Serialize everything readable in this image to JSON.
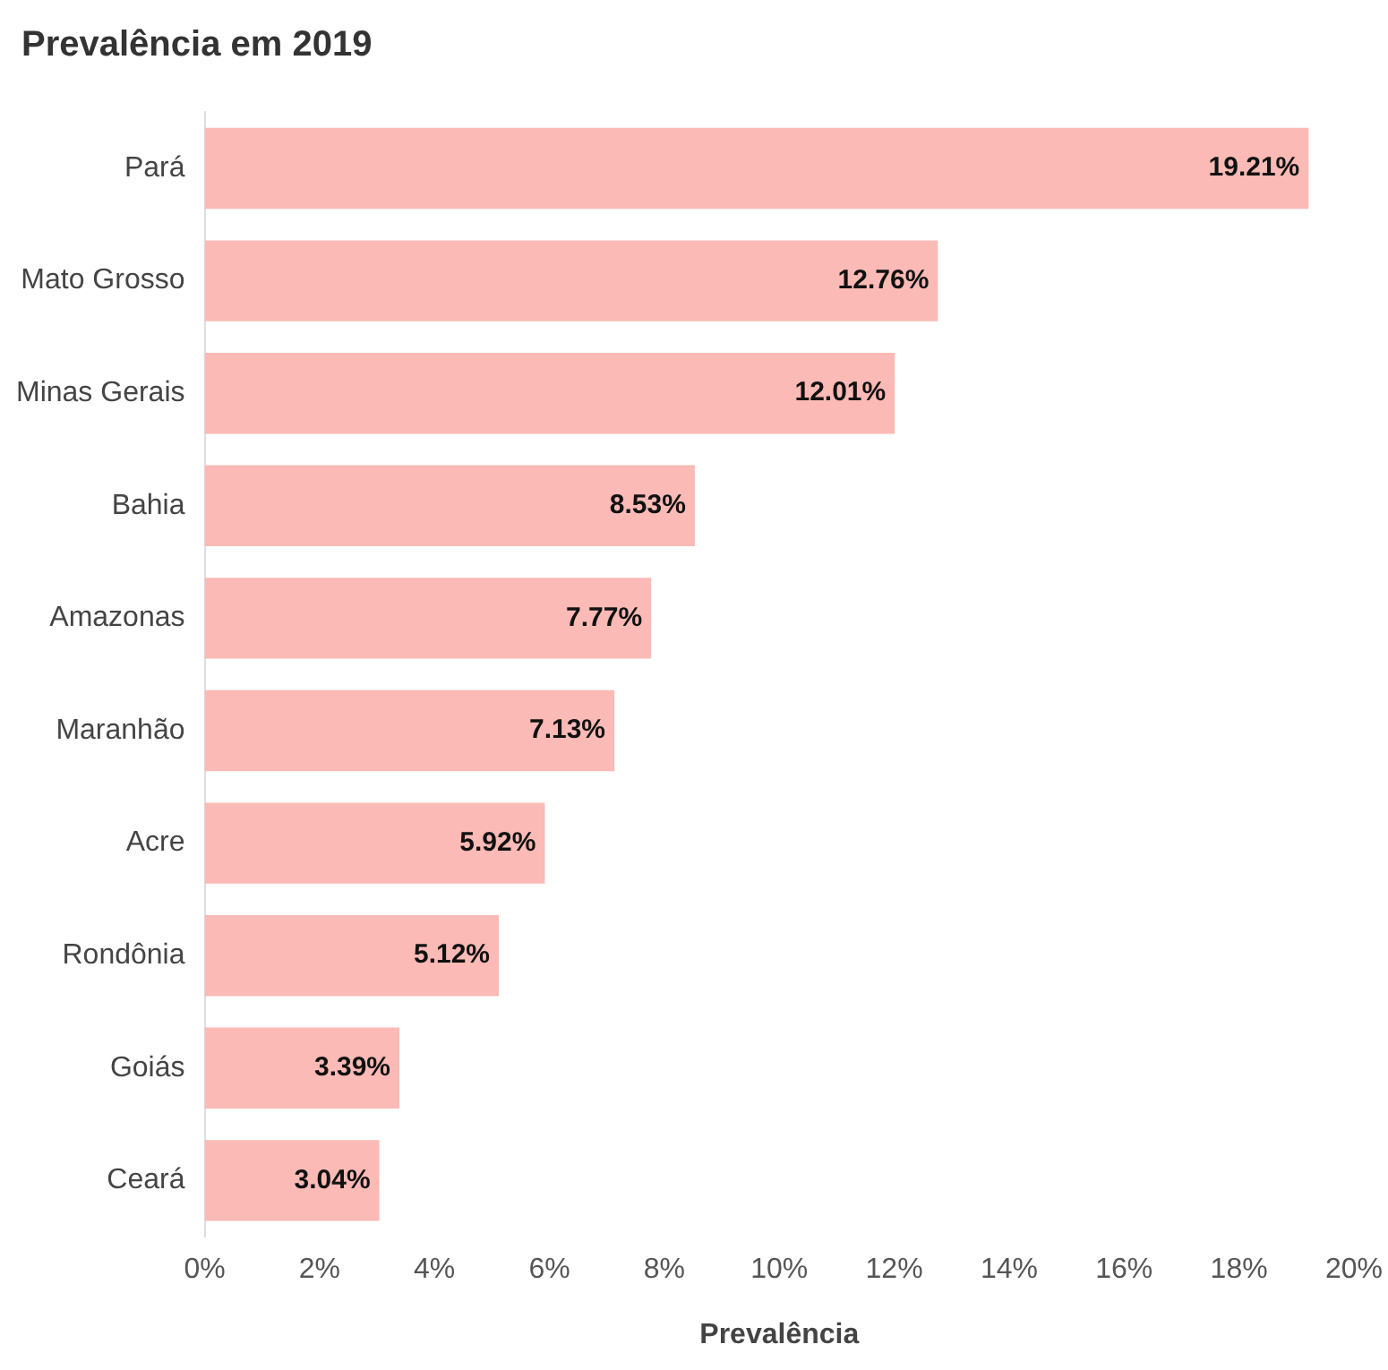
{
  "chart_data": {
    "type": "bar",
    "orientation": "horizontal",
    "title": "Prevalência em 2019",
    "xlabel": "Prevalência",
    "categories": [
      "Pará",
      "Mato Grosso",
      "Minas Gerais",
      "Bahia",
      "Amazonas",
      "Maranhão",
      "Acre",
      "Rondônia",
      "Goiás",
      "Ceará"
    ],
    "values": [
      19.21,
      12.76,
      12.01,
      8.53,
      7.77,
      7.13,
      5.92,
      5.12,
      3.39,
      3.04
    ],
    "value_labels": [
      "19.21%",
      "12.76%",
      "12.01%",
      "8.53%",
      "7.77%",
      "7.13%",
      "5.92%",
      "5.12%",
      "3.39%",
      "3.04%"
    ],
    "color": "#fbbab5",
    "xlim": [
      0,
      20
    ],
    "xticks": [
      {
        "value": 0,
        "label": "0%"
      },
      {
        "value": 2,
        "label": "2%"
      },
      {
        "value": 4,
        "label": "4%"
      },
      {
        "value": 6,
        "label": "6%"
      },
      {
        "value": 8,
        "label": "8%"
      },
      {
        "value": 10,
        "label": "10%"
      },
      {
        "value": 12,
        "label": "12%"
      },
      {
        "value": 14,
        "label": "14%"
      },
      {
        "value": 16,
        "label": "16%"
      },
      {
        "value": 18,
        "label": "18%"
      },
      {
        "value": 20,
        "label": "20%"
      }
    ],
    "grid": false,
    "legend": false
  }
}
